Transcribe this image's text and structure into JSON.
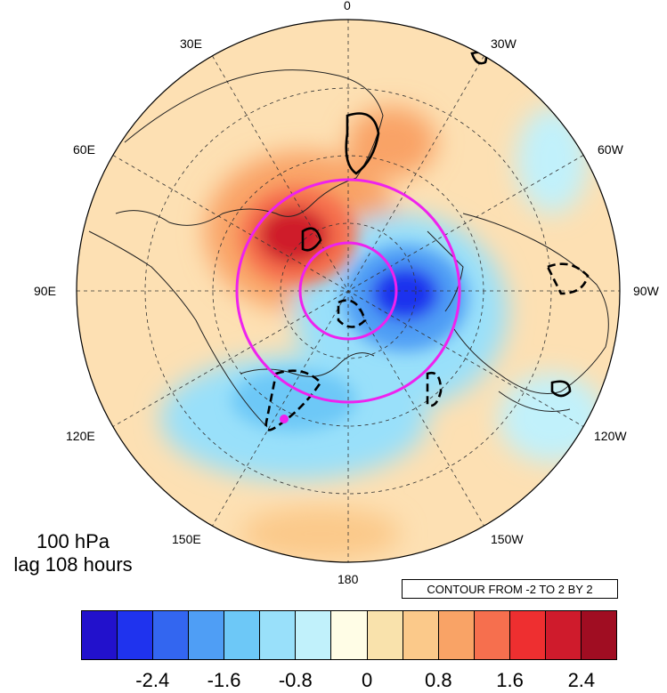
{
  "map": {
    "projection": "north-polar-stereographic",
    "longitude_labels": {
      "top": "0",
      "upper_left": "30E",
      "upper_right": "30W",
      "mid_upper_left": "60E",
      "mid_upper_right": "60W",
      "left": "90E",
      "right": "90W",
      "lower_left": "120E",
      "lower_right": "120W",
      "bottom_left": "150E",
      "bottom_right": "150W",
      "bottom": "180"
    },
    "shading_colors": {
      "positive_strong": "#c8202b",
      "positive": "#f3785a",
      "positive_weak": "#fbd9a9",
      "negative_weak": "#bfe8f7",
      "negative": "#63b4ee",
      "negative_strong": "#2233d9"
    },
    "contour_line_color": "#000000",
    "circle_color": "#ee22ee"
  },
  "annotation": {
    "level": "100 hPa",
    "lag": "lag 108 hours"
  },
  "contour_info": "CONTOUR FROM -2 TO 2 BY 2",
  "colorbar": {
    "colors": [
      "#2211cc",
      "#1f33ee",
      "#3366f0",
      "#4f9ef5",
      "#6dc8f7",
      "#99e0fa",
      "#c1f1fb",
      "#fffde6",
      "#f9e2ac",
      "#fbc98a",
      "#f9a366",
      "#f66f4e",
      "#ee2f30",
      "#cf1b2c",
      "#a00d22"
    ],
    "tick_labels": [
      "-2.4",
      "-1.6",
      "-0.8",
      "0",
      "0.8",
      "1.6",
      "2.4"
    ]
  }
}
